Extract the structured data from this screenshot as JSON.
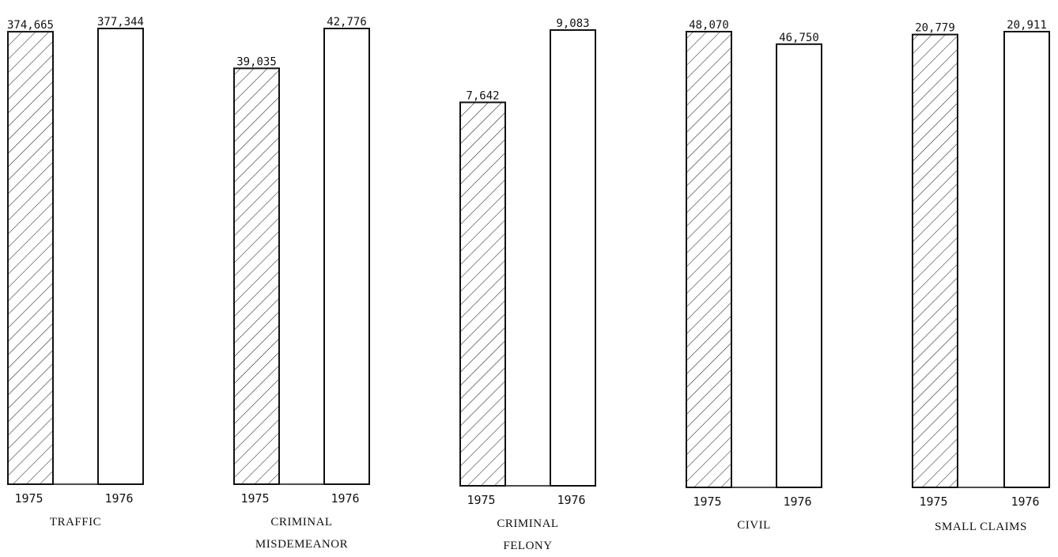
{
  "chart_data": {
    "type": "bar",
    "title": "",
    "xlabel": "",
    "ylabel": "",
    "legend": "none",
    "grid": false,
    "series_labels": [
      "1975",
      "1976"
    ],
    "series_styles": {
      "1975": "diagonal-hatch",
      "1976": "plain"
    },
    "categories": [
      {
        "label_lines": [
          "TRAFFIC"
        ],
        "bars": [
          {
            "year": "1975",
            "value": 374665,
            "label": "374,665"
          },
          {
            "year": "1976",
            "value": 377344,
            "label": "377,344"
          }
        ]
      },
      {
        "label_lines": [
          "CRIMINAL",
          "MISDEMEANOR"
        ],
        "bars": [
          {
            "year": "1975",
            "value": 39035,
            "label": "39,035"
          },
          {
            "year": "1976",
            "value": 42776,
            "label": "42,776"
          }
        ]
      },
      {
        "label_lines": [
          "CRIMINAL",
          "FELONY"
        ],
        "bars": [
          {
            "year": "1975",
            "value": 7642,
            "label": "7,642"
          },
          {
            "year": "1976",
            "value": 9083,
            "label": "9,083"
          }
        ]
      },
      {
        "label_lines": [
          "CIVIL"
        ],
        "bars": [
          {
            "year": "1975",
            "value": 48070,
            "label": "48,070"
          },
          {
            "year": "1976",
            "value": 46750,
            "label": "46,750"
          }
        ]
      },
      {
        "label_lines": [
          "SMALL CLAIMS"
        ],
        "bars": [
          {
            "year": "1975",
            "value": 20779,
            "label": "20,779"
          },
          {
            "year": "1976",
            "value": 20911,
            "label": "20,911"
          }
        ]
      }
    ]
  }
}
